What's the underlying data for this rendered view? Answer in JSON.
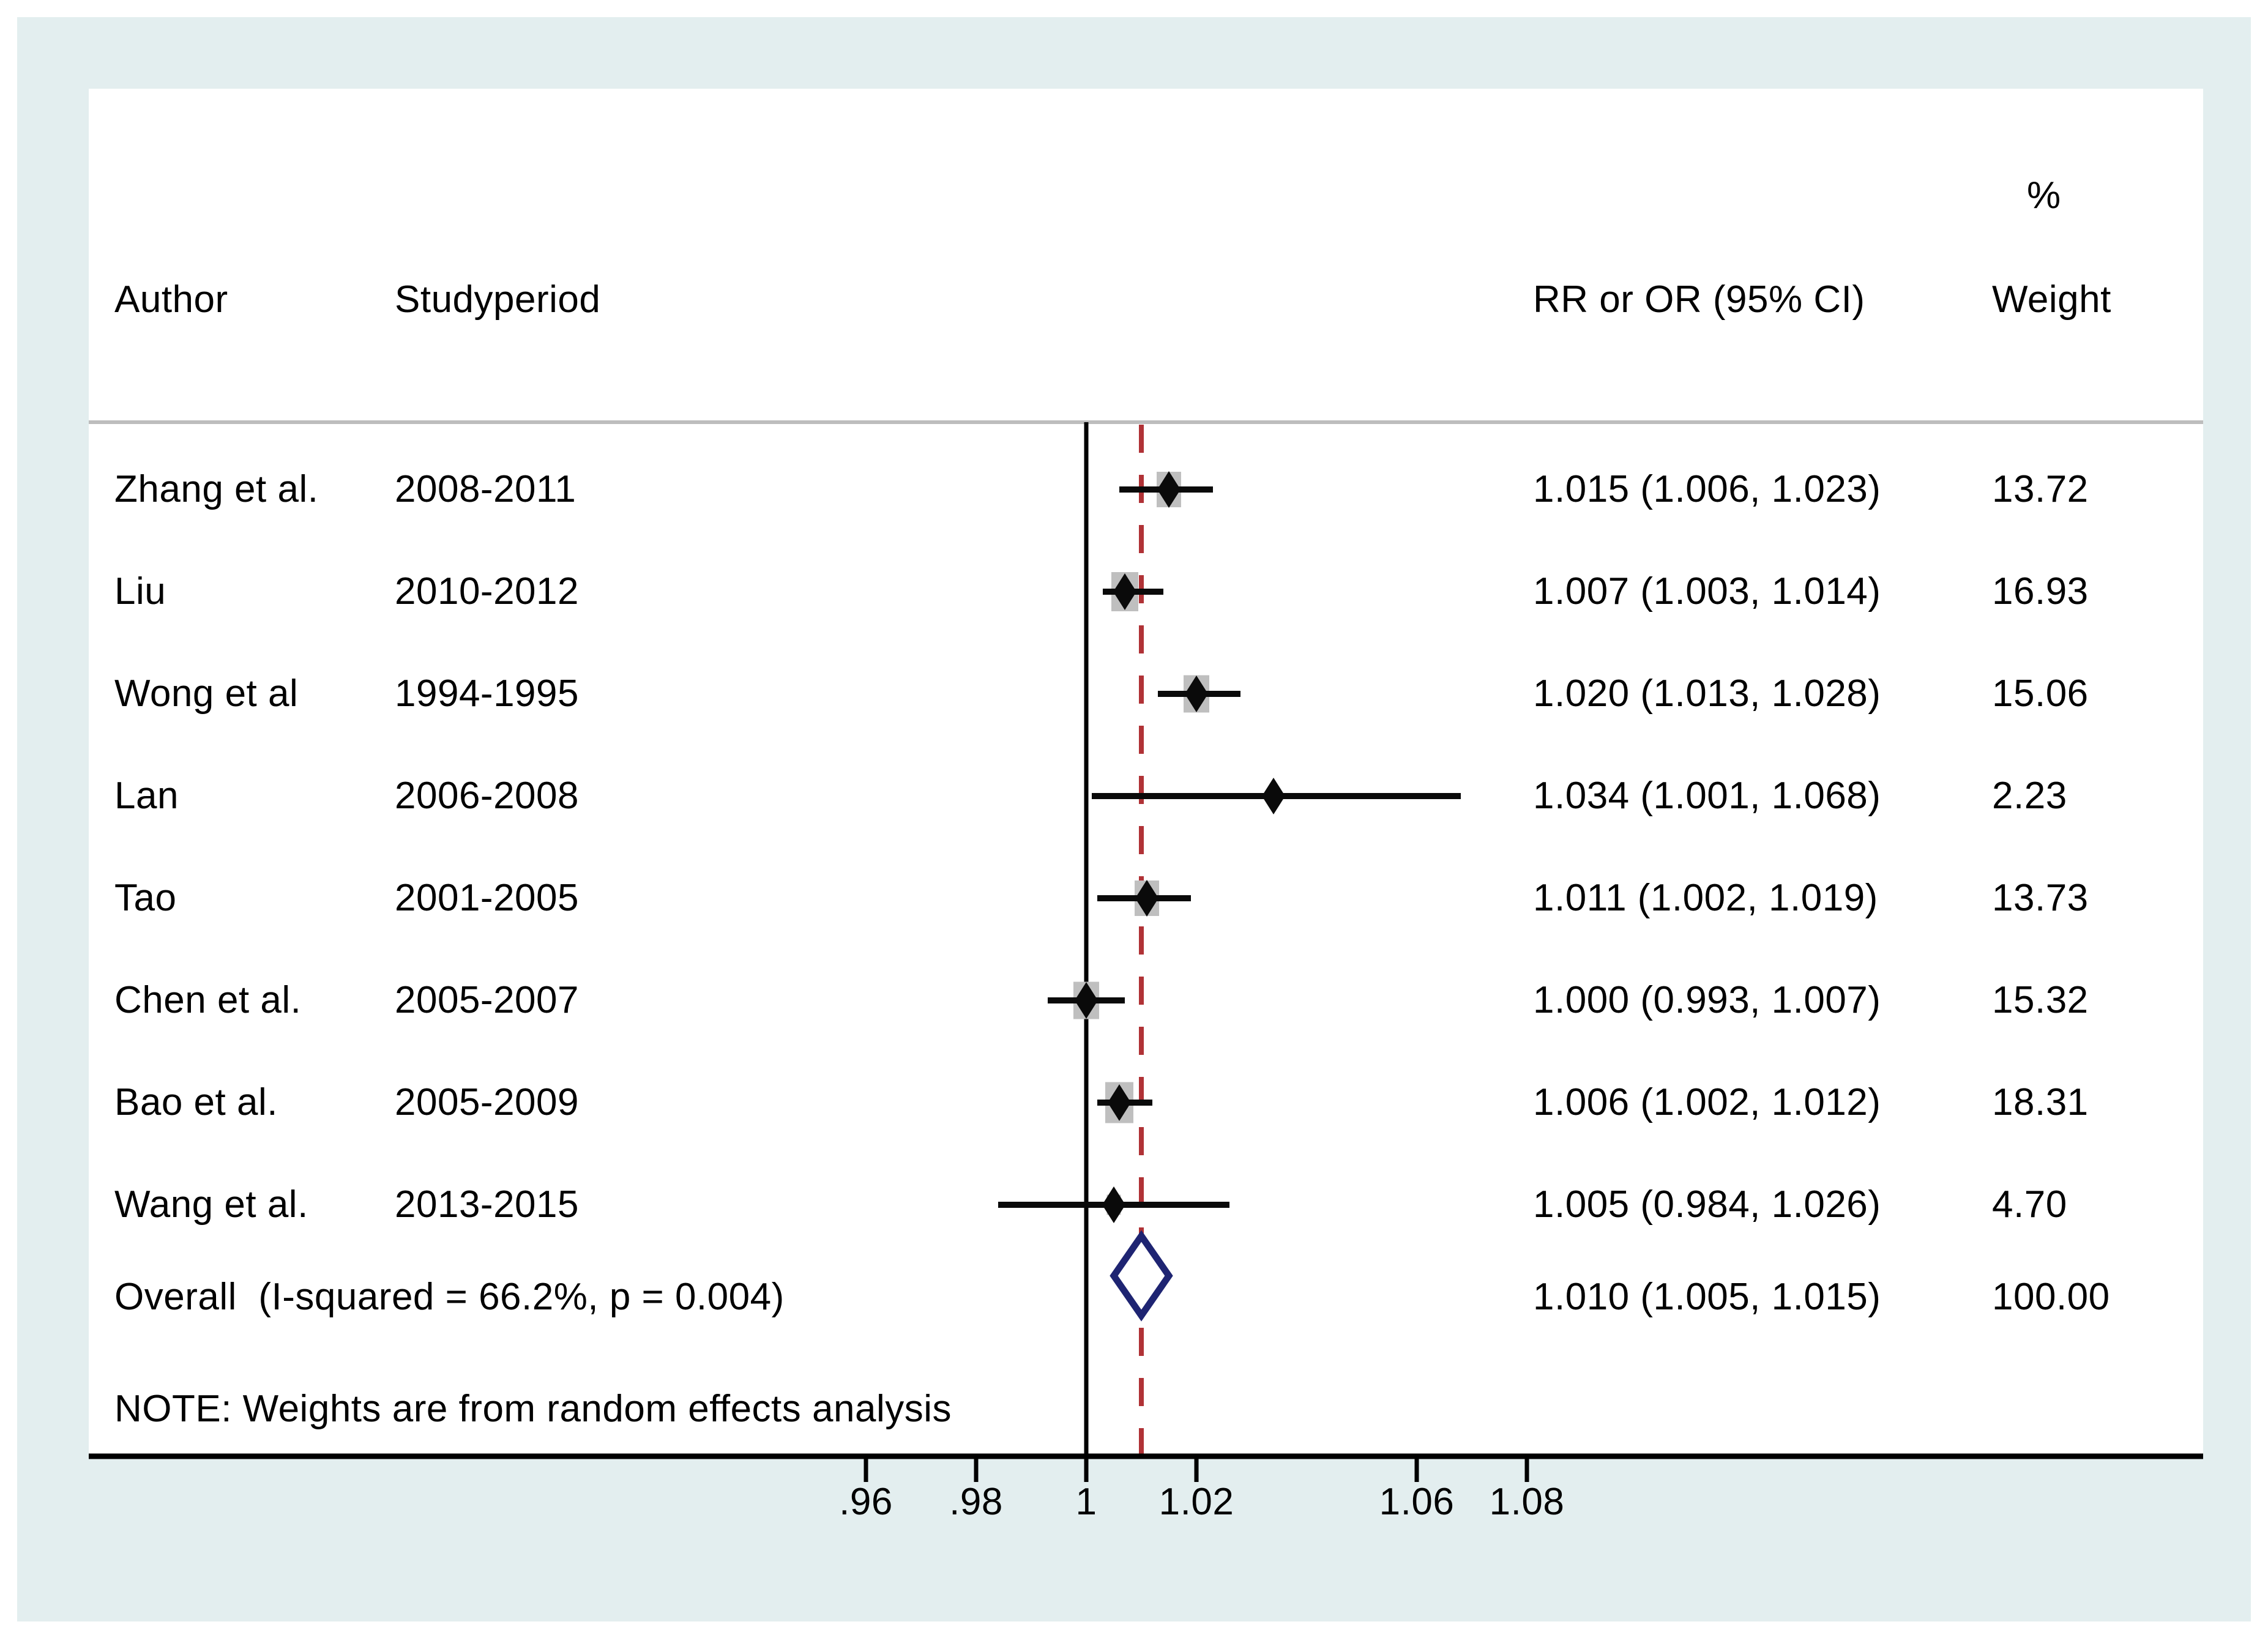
{
  "chart_data": {
    "type": "forest",
    "columns": {
      "author": "Author",
      "period": "Studyperiod",
      "rr": "RR or OR (95% CI)",
      "weight_pct": "%",
      "weight": "Weight"
    },
    "studies": [
      {
        "author": "Zhang et al.",
        "period": "2008-2011",
        "est": 1.015,
        "lo": 1.006,
        "hi": 1.023,
        "rr_text": "1.015 (1.006, 1.023)",
        "weight": 13.72,
        "weight_text": "13.72"
      },
      {
        "author": "Liu",
        "period": "2010-2012",
        "est": 1.007,
        "lo": 1.003,
        "hi": 1.014,
        "rr_text": "1.007 (1.003, 1.014)",
        "weight": 16.93,
        "weight_text": "16.93"
      },
      {
        "author": "Wong et al",
        "period": "1994-1995",
        "est": 1.02,
        "lo": 1.013,
        "hi": 1.028,
        "rr_text": "1.020 (1.013, 1.028)",
        "weight": 15.06,
        "weight_text": "15.06"
      },
      {
        "author": "Lan",
        "period": "2006-2008",
        "est": 1.034,
        "lo": 1.001,
        "hi": 1.068,
        "rr_text": "1.034 (1.001, 1.068)",
        "weight": 2.23,
        "weight_text": "2.23"
      },
      {
        "author": "Tao",
        "period": "2001-2005",
        "est": 1.011,
        "lo": 1.002,
        "hi": 1.019,
        "rr_text": "1.011 (1.002, 1.019)",
        "weight": 13.73,
        "weight_text": "13.73"
      },
      {
        "author": "Chen et al.",
        "period": "2005-2007",
        "est": 1.0,
        "lo": 0.993,
        "hi": 1.007,
        "rr_text": "1.000 (0.993, 1.007)",
        "weight": 15.32,
        "weight_text": "15.32"
      },
      {
        "author": "Bao et al.",
        "period": "2005-2009",
        "est": 1.006,
        "lo": 1.002,
        "hi": 1.012,
        "rr_text": "1.006 (1.002, 1.012)",
        "weight": 18.31,
        "weight_text": "18.31"
      },
      {
        "author": "Wang et al.",
        "period": "2013-2015",
        "est": 1.005,
        "lo": 0.984,
        "hi": 1.026,
        "rr_text": "1.005 (0.984, 1.026)",
        "weight": 4.7,
        "weight_text": "4.70"
      }
    ],
    "overall": {
      "label": "Overall  (I-squared = 66.2%, p = 0.004)",
      "est": 1.01,
      "lo": 1.005,
      "hi": 1.015,
      "rr_text": "1.010 (1.005, 1.015)",
      "weight_text": "100.00"
    },
    "note": "NOTE: Weights are from random effects analysis",
    "null_line_value": 1,
    "overall_line_value": 1.01,
    "x_ticks": [
      {
        "label": ".96",
        "value": 0.96
      },
      {
        "label": ".98",
        "value": 0.98
      },
      {
        "label": "1",
        "value": 1.0
      },
      {
        "label": "1.02",
        "value": 1.02
      },
      {
        "label": "1.06",
        "value": 1.06
      },
      {
        "label": "1.08",
        "value": 1.08
      }
    ],
    "colors": {
      "background_frame": "#e3eeef",
      "panel": "#ffffff",
      "text": "#000000",
      "ci_line": "#0a0a0a",
      "weight_square": "#bfbfbf",
      "point_marker": "#0a0a0a",
      "pooled_diamond_outline": "#1e2472",
      "overall_dashed_line": "#b03236",
      "null_line": "#000000",
      "axis_line": "#000000",
      "header_separator": "#bdbdbd"
    }
  }
}
